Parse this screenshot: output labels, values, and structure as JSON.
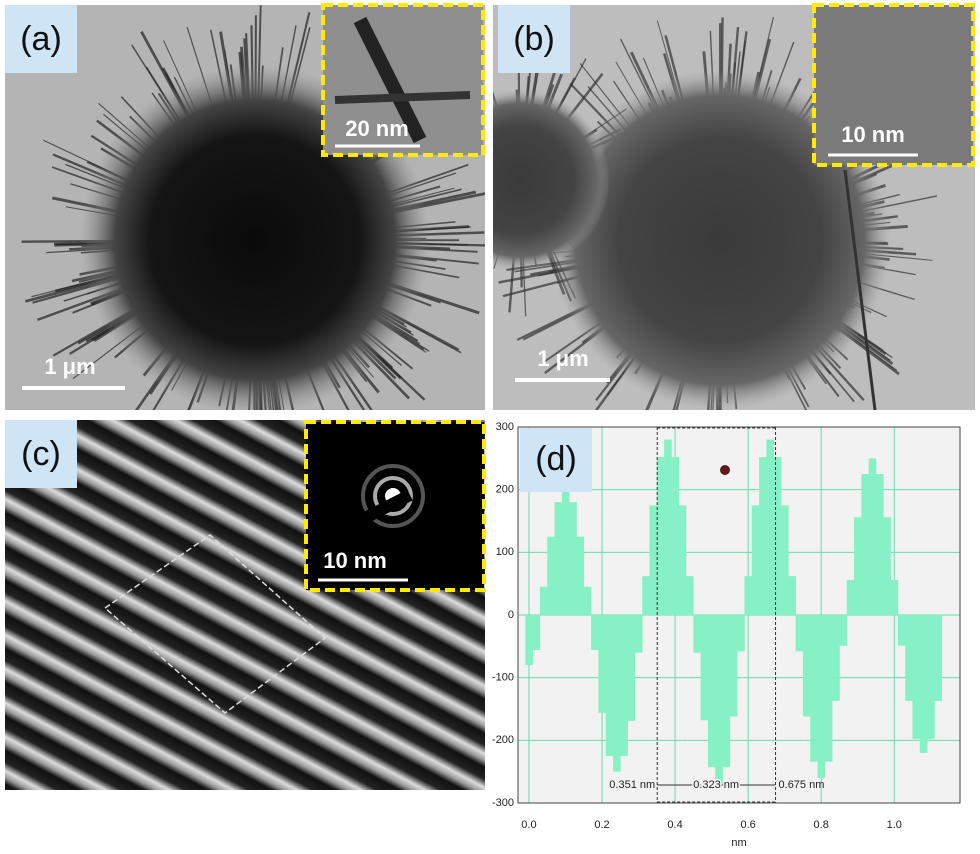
{
  "panels": [
    {
      "label": "(a)",
      "scale_bar": "1 μm",
      "inset_scale_bar": "20 nm"
    },
    {
      "label": "(b)",
      "scale_bar": "1 μm",
      "inset_scale_bar": "10 nm"
    },
    {
      "label": "(c)",
      "inset_scale_bar": "10 nm"
    }
  ],
  "chart_data": {
    "type": "bar",
    "panel_label": "(d)",
    "x_label": "nm",
    "color": "#86f0c6",
    "grid": true,
    "x": [
      0,
      0.02,
      0.04,
      0.06,
      0.08,
      0.1,
      0.12,
      0.14,
      0.16,
      0.18,
      0.2,
      0.22,
      0.24,
      0.26,
      0.28,
      0.3,
      0.32,
      0.34,
      0.36,
      0.38,
      0.4,
      0.42,
      0.44,
      0.46,
      0.48,
      0.5,
      0.52,
      0.54,
      0.56,
      0.58,
      0.6,
      0.62,
      0.64,
      0.66,
      0.68,
      0.7,
      0.72,
      0.74,
      0.76,
      0.78,
      0.8,
      0.82,
      0.84,
      0.86,
      0.88,
      0.9,
      0.92,
      0.94,
      0.96,
      0.98,
      1,
      1.02,
      1.04,
      1.06,
      1.08,
      1.1,
      1.12
    ],
    "values": [
      -80,
      -56,
      45,
      125,
      180,
      200,
      180,
      125,
      45,
      -56,
      -156,
      -225,
      -250,
      -225,
      -169,
      -60,
      62,
      175,
      252,
      280,
      252,
      175,
      62,
      -60,
      -168,
      -243,
      -270,
      -243,
      -162,
      -58,
      62,
      175,
      252,
      280,
      252,
      175,
      62,
      -58,
      -162,
      -234,
      -260,
      -234,
      -137,
      -49,
      56,
      156,
      225,
      250,
      225,
      156,
      56,
      -49,
      -137,
      -198,
      -220,
      -198,
      -137
    ],
    "xlim": [
      -0.03,
      1.18
    ],
    "ylim": [
      -300,
      300
    ],
    "xticks": [
      {
        "value": 0,
        "label": "0.0"
      },
      0.2,
      0.4,
      0.6,
      0.8,
      {
        "value": 1,
        "label": "1.0"
      }
    ],
    "yticks": [
      -300,
      -200,
      -100,
      0,
      100,
      200,
      300
    ],
    "annotations": [
      {
        "value": 0.351,
        "label": "0.351 nm"
      },
      {
        "value": 0.323,
        "label": "0.323 nm"
      },
      {
        "value": 0.675,
        "label": "0.675 nm"
      }
    ]
  }
}
